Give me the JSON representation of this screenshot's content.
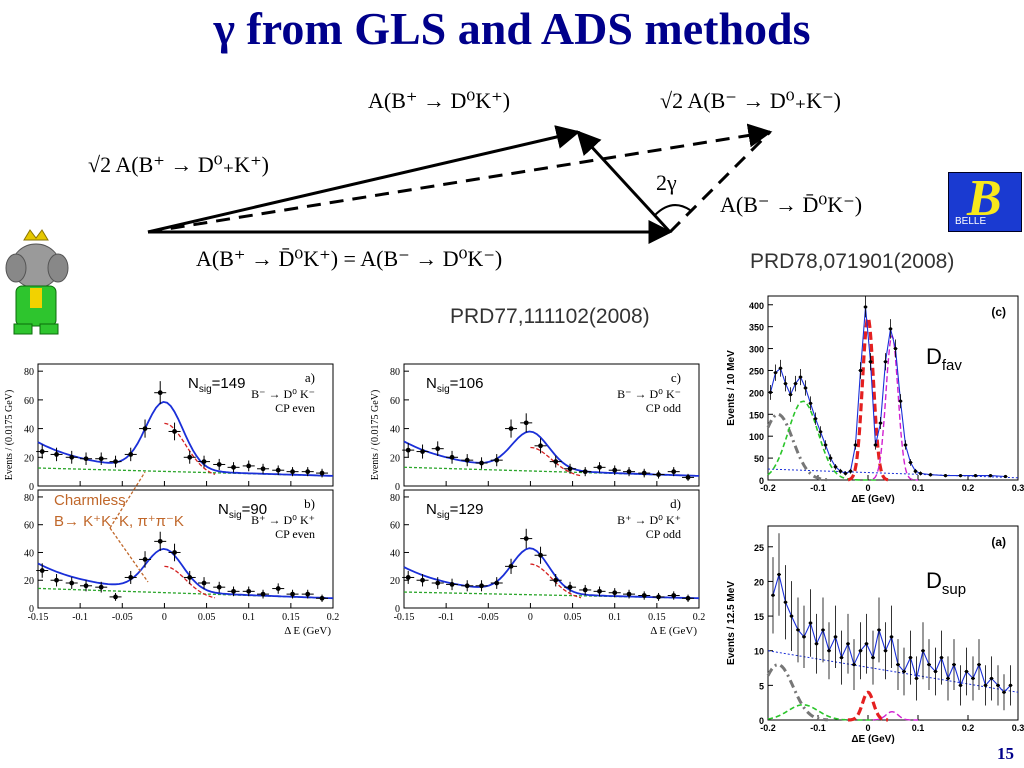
{
  "title": "γ from GLS and ADS methods",
  "page_number": "15",
  "diagram": {
    "label_top_left": "A(B⁺ → D⁰K⁺)",
    "label_top_right": "√2 A(B⁻ → D⁰₊K⁻)",
    "label_left": "√2 A(B⁺ → D⁰₊K⁺)",
    "label_angle": "2γ",
    "label_right": "A(B⁻ → D̄⁰K⁻)",
    "label_bottom": "A(B⁺ → D̄⁰K⁺) = A(B⁻ → D⁰K⁻)"
  },
  "refs": {
    "gls": "PRD77,111102(2008)",
    "ads": "PRD78,071901(2008)"
  },
  "logo": {
    "letter": "B",
    "text": "BELLE",
    "bg": "#1a3ad1",
    "fg": "#f7e81c"
  },
  "annotation": {
    "line1": "Charmless",
    "line2": "B→ K⁺K⁻K, π⁺π⁻K",
    "color": "#c0672a"
  },
  "gls_panels": [
    {
      "id": "a",
      "nsig": "N",
      "nsig_sub": "sig",
      "nsig_val": "=149",
      "tag": "a)",
      "decay": "B⁻ → D⁰ K⁻",
      "cp": "CP even"
    },
    {
      "id": "c",
      "nsig": "N",
      "nsig_sub": "sig",
      "nsig_val": "=106",
      "tag": "c)",
      "decay": "B⁻ → D⁰ K⁻",
      "cp": "CP odd"
    },
    {
      "id": "b",
      "nsig": "N",
      "nsig_sub": "sig",
      "nsig_val": "=90",
      "tag": "b)",
      "decay": "B⁺ → D⁰ K⁺",
      "cp": "CP even"
    },
    {
      "id": "d",
      "nsig": "N",
      "nsig_sub": "sig",
      "nsig_val": "=129",
      "tag": "d)",
      "decay": "B⁺ → D⁰ K⁺",
      "cp": "CP odd"
    }
  ],
  "gls_axes": {
    "ylabel": "Events / (0.0175 GeV)",
    "xlabel": "Δ E (GeV)",
    "xticks": [
      "-0.15",
      "-0.1",
      "-0.05",
      "0",
      "0.05",
      "0.1",
      "0.15",
      "0.2"
    ],
    "yticks": [
      "0",
      "20",
      "40",
      "60",
      "80"
    ]
  },
  "ads_panels": [
    {
      "id": "c",
      "tag": "(c)",
      "label": "D",
      "label_sub": "fav",
      "ylabel": "Events / 10 MeV",
      "yticks": [
        "0",
        "50",
        "100",
        "150",
        "200",
        "250",
        "300",
        "350",
        "400"
      ]
    },
    {
      "id": "a",
      "tag": "(a)",
      "label": "D",
      "label_sub": "sup",
      "ylabel": "Events / 12.5 MeV",
      "yticks": [
        "0",
        "5",
        "10",
        "15",
        "20",
        "25"
      ]
    }
  ],
  "ads_axes": {
    "xlabel": "ΔE (GeV)",
    "xticks": [
      "-0.2",
      "-0.1",
      "0",
      "0.1",
      "0.2",
      "0.3"
    ]
  },
  "chart_data": [
    {
      "type": "scatter",
      "title": "",
      "xlabel": "Δ E (GeV)",
      "ylabel": "Events / (0.0175 GeV)",
      "xlim": [
        -0.15,
        0.2
      ],
      "ylim": [
        0,
        85
      ],
      "x": [
        -0.145,
        -0.128,
        -0.11,
        -0.093,
        -0.075,
        -0.058,
        -0.04,
        -0.023,
        -0.005,
        0.012,
        0.03,
        0.047,
        0.065,
        0.082,
        0.1,
        0.117,
        0.135,
        0.152,
        0.17,
        0.187
      ],
      "y": [
        24,
        22,
        20,
        19,
        19,
        17,
        22,
        40,
        65,
        38,
        20,
        17,
        15,
        13,
        14,
        12,
        11,
        10,
        10,
        9
      ]
    },
    {
      "type": "scatter",
      "title": "",
      "xlabel": "Δ E (GeV)",
      "ylabel": "Events / (0.0175 GeV)",
      "xlim": [
        -0.15,
        0.2
      ],
      "ylim": [
        0,
        85
      ],
      "x": [
        -0.145,
        -0.128,
        -0.11,
        -0.093,
        -0.075,
        -0.058,
        -0.04,
        -0.023,
        -0.005,
        0.012,
        0.03,
        0.047,
        0.065,
        0.082,
        0.1,
        0.117,
        0.135,
        0.152,
        0.17,
        0.187
      ],
      "y": [
        25,
        24,
        26,
        20,
        18,
        16,
        18,
        40,
        44,
        28,
        17,
        12,
        10,
        13,
        11,
        10,
        9,
        8,
        10,
        6
      ]
    },
    {
      "type": "scatter",
      "title": "",
      "xlabel": "Δ E (GeV)",
      "ylabel": "Events / (0.0175 GeV)",
      "xlim": [
        -0.15,
        0.2
      ],
      "ylim": [
        0,
        85
      ],
      "x": [
        -0.145,
        -0.128,
        -0.11,
        -0.093,
        -0.075,
        -0.058,
        -0.04,
        -0.023,
        -0.005,
        0.012,
        0.03,
        0.047,
        0.065,
        0.082,
        0.1,
        0.117,
        0.135,
        0.152,
        0.17,
        0.187
      ],
      "y": [
        27,
        20,
        18,
        16,
        15,
        8,
        22,
        35,
        48,
        40,
        22,
        18,
        15,
        12,
        12,
        10,
        14,
        10,
        10,
        7
      ]
    },
    {
      "type": "scatter",
      "title": "",
      "xlabel": "Δ E (GeV)",
      "ylabel": "Events / (0.0175 GeV)",
      "xlim": [
        -0.15,
        0.2
      ],
      "ylim": [
        0,
        85
      ],
      "x": [
        -0.145,
        -0.128,
        -0.11,
        -0.093,
        -0.075,
        -0.058,
        -0.04,
        -0.023,
        -0.005,
        0.012,
        0.03,
        0.047,
        0.065,
        0.082,
        0.1,
        0.117,
        0.135,
        0.152,
        0.17,
        0.187
      ],
      "y": [
        22,
        20,
        18,
        17,
        16,
        16,
        18,
        30,
        50,
        38,
        20,
        15,
        13,
        12,
        11,
        10,
        9,
        8,
        9,
        7
      ]
    },
    {
      "type": "scatter",
      "title": "",
      "xlabel": "ΔE (GeV)",
      "ylabel": "Events / 10 MeV",
      "xlim": [
        -0.2,
        0.3
      ],
      "ylim": [
        0,
        420
      ],
      "x": [
        -0.195,
        -0.185,
        -0.175,
        -0.165,
        -0.155,
        -0.145,
        -0.135,
        -0.125,
        -0.115,
        -0.105,
        -0.095,
        -0.085,
        -0.075,
        -0.065,
        -0.055,
        -0.045,
        -0.035,
        -0.025,
        -0.015,
        -0.005,
        0.005,
        0.015,
        0.025,
        0.035,
        0.045,
        0.055,
        0.065,
        0.075,
        0.085,
        0.095,
        0.105,
        0.125,
        0.155,
        0.185,
        0.215,
        0.245,
        0.275
      ],
      "y": [
        200,
        245,
        255,
        220,
        195,
        220,
        235,
        210,
        175,
        140,
        110,
        80,
        50,
        30,
        20,
        15,
        20,
        80,
        250,
        395,
        270,
        80,
        130,
        270,
        345,
        300,
        180,
        80,
        40,
        20,
        15,
        12,
        10,
        10,
        10,
        10,
        8
      ]
    },
    {
      "type": "scatter",
      "title": "",
      "xlabel": "ΔE (GeV)",
      "ylabel": "Events / 12.5 MeV",
      "xlim": [
        -0.2,
        0.3
      ],
      "ylim": [
        0,
        28
      ],
      "x": [
        -0.19,
        -0.178,
        -0.165,
        -0.153,
        -0.14,
        -0.128,
        -0.115,
        -0.103,
        -0.09,
        -0.078,
        -0.065,
        -0.053,
        -0.04,
        -0.028,
        -0.015,
        -0.003,
        0.01,
        0.022,
        0.035,
        0.047,
        0.06,
        0.072,
        0.085,
        0.097,
        0.11,
        0.122,
        0.135,
        0.147,
        0.16,
        0.172,
        0.185,
        0.197,
        0.21,
        0.222,
        0.235,
        0.247,
        0.26,
        0.272,
        0.285
      ],
      "y": [
        18,
        21,
        17,
        15,
        13,
        12,
        14,
        11,
        13,
        10,
        12,
        9,
        11,
        8,
        10,
        11,
        9,
        13,
        10,
        12,
        8,
        7,
        9,
        6,
        10,
        8,
        7,
        9,
        6,
        8,
        5,
        7,
        6,
        8,
        5,
        6,
        5,
        4,
        5
      ]
    }
  ]
}
